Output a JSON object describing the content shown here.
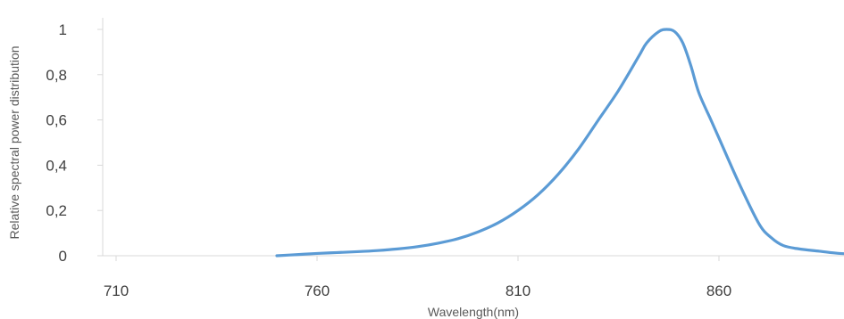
{
  "chart_data": {
    "type": "line",
    "title": "",
    "xlabel": "Wavelength(nm)",
    "ylabel": "Relative spectral power distribution",
    "xlim": [
      710,
      900
    ],
    "ylim": [
      0,
      1
    ],
    "x_ticks": [
      710,
      760,
      810,
      860
    ],
    "x_tick_labels": [
      "710",
      "760",
      "810",
      "860"
    ],
    "y_ticks": [
      0,
      0.2,
      0.4,
      0.6,
      0.8,
      1
    ],
    "y_tick_labels": [
      "0",
      "0,2",
      "0,4",
      "0,6",
      "0,8",
      "1"
    ],
    "grid": false,
    "legend": "none",
    "line_color": "#5b9bd5",
    "axis_color": "#d9d9d9",
    "series": [
      {
        "x": [
          750,
          755,
          760,
          765,
          770,
          775,
          780,
          785,
          790,
          795,
          800,
          805,
          810,
          815,
          820,
          825,
          830,
          835,
          840,
          842,
          845,
          847,
          849,
          851,
          853,
          855,
          858,
          860,
          865,
          870,
          873,
          876,
          880,
          885,
          890,
          895,
          900
        ],
        "y": [
          0.0,
          0.005,
          0.01,
          0.014,
          0.018,
          0.023,
          0.03,
          0.04,
          0.055,
          0.075,
          0.105,
          0.145,
          0.2,
          0.27,
          0.36,
          0.47,
          0.6,
          0.73,
          0.88,
          0.94,
          0.99,
          1.0,
          0.99,
          0.94,
          0.84,
          0.72,
          0.6,
          0.52,
          0.32,
          0.14,
          0.08,
          0.045,
          0.03,
          0.02,
          0.01,
          0.008,
          0.008
        ]
      }
    ]
  }
}
